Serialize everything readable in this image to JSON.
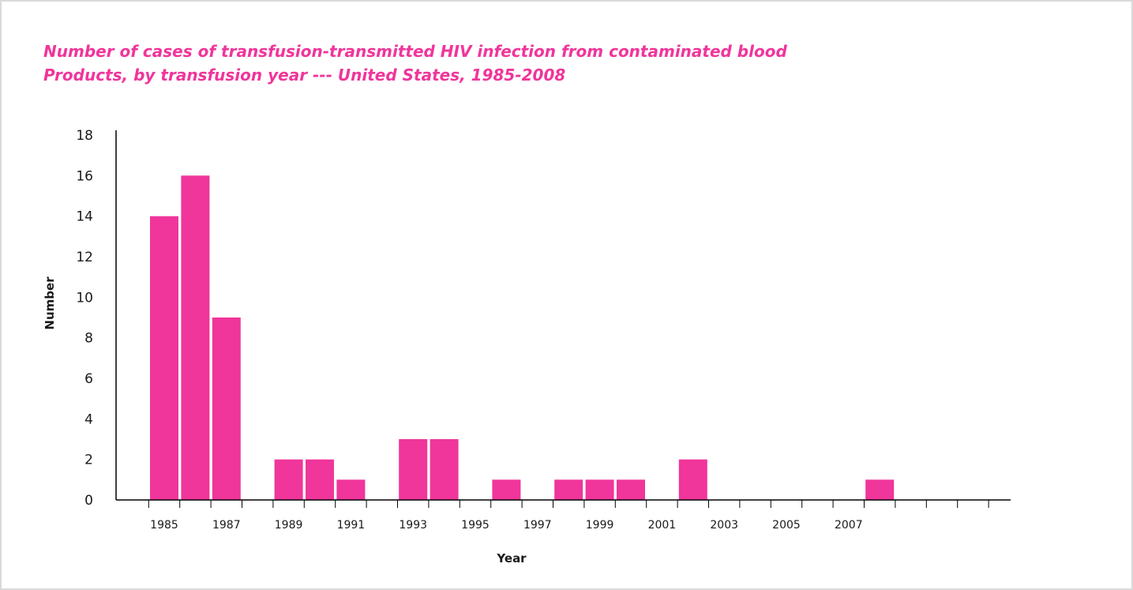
{
  "chart_data": {
    "type": "bar",
    "title_lines": [
      "Number of cases of transfusion-transmitted HIV infection from contaminated blood",
      "Products, by transfusion year --- United States, 1985-2008"
    ],
    "xlabel": "Year",
    "ylabel": "Number",
    "ylim": [
      0,
      18
    ],
    "yticks": [
      "0",
      "2",
      "4",
      "6",
      "8",
      "10",
      "12",
      "14",
      "16",
      "18"
    ],
    "categories": [
      "1985",
      "1986",
      "1987",
      "1988",
      "1989",
      "1990",
      "1991",
      "1992",
      "1993",
      "1994",
      "1995",
      "1996",
      "1997",
      "1998",
      "1999",
      "2000",
      "2001",
      "2002",
      "2003",
      "2004",
      "2005",
      "2006",
      "2007",
      "2008"
    ],
    "xtick_labels": [
      "1985",
      "1987",
      "1989",
      "1991",
      "1993",
      "1995",
      "1997",
      "1999",
      "2001",
      "2003",
      "2005",
      "2007"
    ],
    "values": [
      14,
      16,
      9,
      0,
      2,
      2,
      1,
      0,
      3,
      3,
      0,
      1,
      0,
      1,
      1,
      1,
      0,
      2,
      0,
      0,
      0,
      0,
      0,
      1
    ],
    "bar_color": "#f0359b",
    "grid": false,
    "legend": "none"
  }
}
